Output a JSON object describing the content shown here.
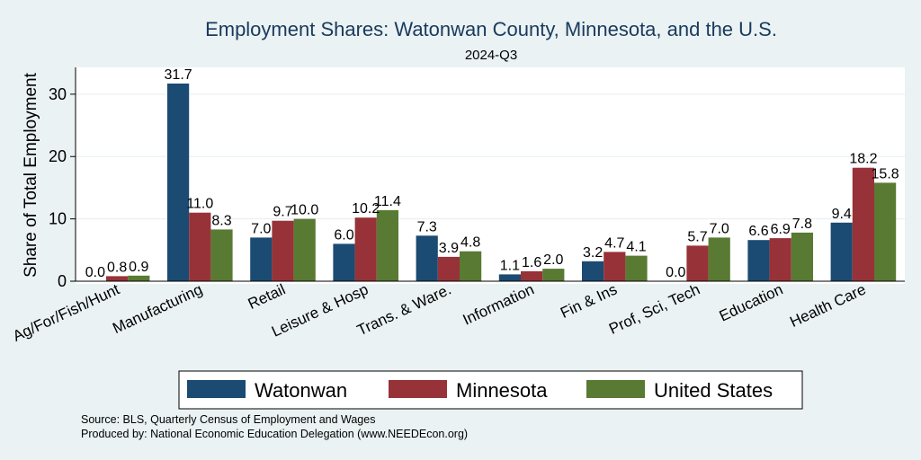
{
  "chart_data": {
    "type": "bar",
    "title": "Employment Shares: Watonwan County, Minnesota, and the U.S.",
    "subtitle": "2024-Q3",
    "ylabel": "Share of Total Employment",
    "xlabel": "",
    "ylim": [
      0,
      34.3
    ],
    "yticks": [
      "0",
      "10",
      "20",
      "30"
    ],
    "grid": true,
    "legend_position": "bottom",
    "categories": [
      "Ag/For/Fish/Hunt",
      "Manufacturing",
      "Retail",
      "Leisure & Hosp",
      "Trans. & Ware.",
      "Information",
      "Fin & Ins",
      "Prof, Sci, Tech",
      "Education",
      "Health Care"
    ],
    "series": [
      {
        "name": "Watonwan",
        "color": "#1b4a72",
        "values": [
          0.0,
          31.7,
          7.0,
          6.0,
          7.3,
          1.1,
          3.2,
          0.0,
          6.6,
          9.4
        ],
        "labels": [
          "0.0",
          "31.7",
          "7.0",
          "6.0",
          "7.3",
          "1.1",
          "3.2",
          "0.0",
          "6.6",
          "9.4"
        ]
      },
      {
        "name": "Minnesota",
        "color": "#973238",
        "values": [
          0.8,
          11.0,
          9.7,
          10.2,
          3.9,
          1.6,
          4.7,
          5.7,
          6.9,
          18.2
        ],
        "labels": [
          "0.8",
          "11.0",
          "9.7",
          "10.2",
          "3.9",
          "1.6",
          "4.7",
          "5.7",
          "6.9",
          "18.2"
        ]
      },
      {
        "name": "United States",
        "color": "#597a32",
        "values": [
          0.9,
          8.3,
          10.0,
          11.4,
          4.8,
          2.0,
          4.1,
          7.0,
          7.8,
          15.8
        ],
        "labels": [
          "0.9",
          "8.3",
          "10.0",
          "11.4",
          "4.8",
          "2.0",
          "4.1",
          "7.0",
          "7.8",
          "15.8"
        ]
      }
    ]
  },
  "notes": {
    "source": "Source: BLS, Quarterly Census of Employment and Wages",
    "produced_by": "Produced by: National Economic Education Delegation (www.NEEDEcon.org)"
  }
}
